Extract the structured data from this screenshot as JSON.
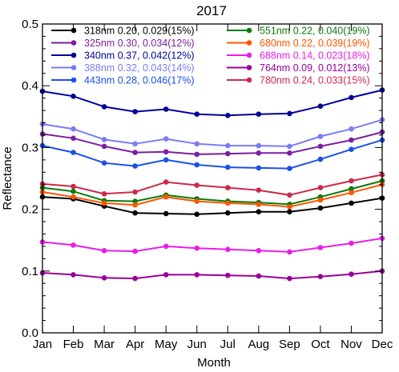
{
  "chart_data": {
    "type": "line",
    "title": "2017",
    "xlabel": "Month",
    "ylabel": "Reflectance",
    "categories": [
      "Jan",
      "Feb",
      "Mar",
      "Apr",
      "May",
      "Jun",
      "Jul",
      "Aug",
      "Sep",
      "Oct",
      "Nov",
      "Dec"
    ],
    "ylim": [
      0.0,
      0.5
    ],
    "yticks": [
      "0.0",
      "0.1",
      "0.2",
      "0.3",
      "0.4",
      "0.5"
    ],
    "grid": false,
    "legend_position": "top",
    "series": [
      {
        "name": "318nm 0.20, 0.029(15%)",
        "color": "#000000",
        "values": [
          0.22,
          0.217,
          0.205,
          0.194,
          0.193,
          0.192,
          0.194,
          0.196,
          0.196,
          0.202,
          0.21,
          0.218
        ]
      },
      {
        "name": "325nm 0.30, 0.034(12%)",
        "color": "#7a1fa2",
        "values": [
          0.322,
          0.315,
          0.302,
          0.292,
          0.293,
          0.289,
          0.29,
          0.291,
          0.291,
          0.302,
          0.312,
          0.325
        ]
      },
      {
        "name": "340nm 0.37, 0.042(12%)",
        "color": "#000099",
        "values": [
          0.391,
          0.383,
          0.366,
          0.358,
          0.362,
          0.354,
          0.352,
          0.354,
          0.355,
          0.367,
          0.381,
          0.393
        ]
      },
      {
        "name": "388nm 0.32, 0.043(14%)",
        "color": "#7b7bf7",
        "values": [
          0.338,
          0.33,
          0.313,
          0.306,
          0.314,
          0.306,
          0.303,
          0.303,
          0.302,
          0.318,
          0.33,
          0.345
        ]
      },
      {
        "name": "443nm 0.28, 0.046(17%)",
        "color": "#1a50e8",
        "values": [
          0.303,
          0.292,
          0.275,
          0.27,
          0.28,
          0.272,
          0.268,
          0.267,
          0.266,
          0.281,
          0.297,
          0.312
        ]
      },
      {
        "name": "551nm 0.22, 0.040(19%)",
        "color": "#0a7a0a",
        "values": [
          0.235,
          0.229,
          0.214,
          0.213,
          0.223,
          0.217,
          0.213,
          0.211,
          0.208,
          0.22,
          0.233,
          0.246
        ]
      },
      {
        "name": "680nm 0.22, 0.039(19%)",
        "color": "#ff5500",
        "values": [
          0.228,
          0.22,
          0.21,
          0.207,
          0.22,
          0.213,
          0.21,
          0.208,
          0.204,
          0.215,
          0.227,
          0.24
        ]
      },
      {
        "name": "688nm 0.14, 0.023(18%)",
        "color": "#e81ee8",
        "values": [
          0.147,
          0.142,
          0.133,
          0.132,
          0.14,
          0.137,
          0.135,
          0.133,
          0.131,
          0.138,
          0.145,
          0.153
        ]
      },
      {
        "name": "764nm 0.09, 0.012(13%)",
        "color": "#990099",
        "values": [
          0.097,
          0.094,
          0.089,
          0.088,
          0.094,
          0.094,
          0.093,
          0.092,
          0.088,
          0.091,
          0.095,
          0.1
        ]
      },
      {
        "name": "780nm 0.24, 0.033(15%)",
        "color": "#cc2a4a",
        "values": [
          0.241,
          0.237,
          0.225,
          0.228,
          0.244,
          0.239,
          0.235,
          0.231,
          0.223,
          0.235,
          0.246,
          0.256
        ]
      }
    ]
  }
}
